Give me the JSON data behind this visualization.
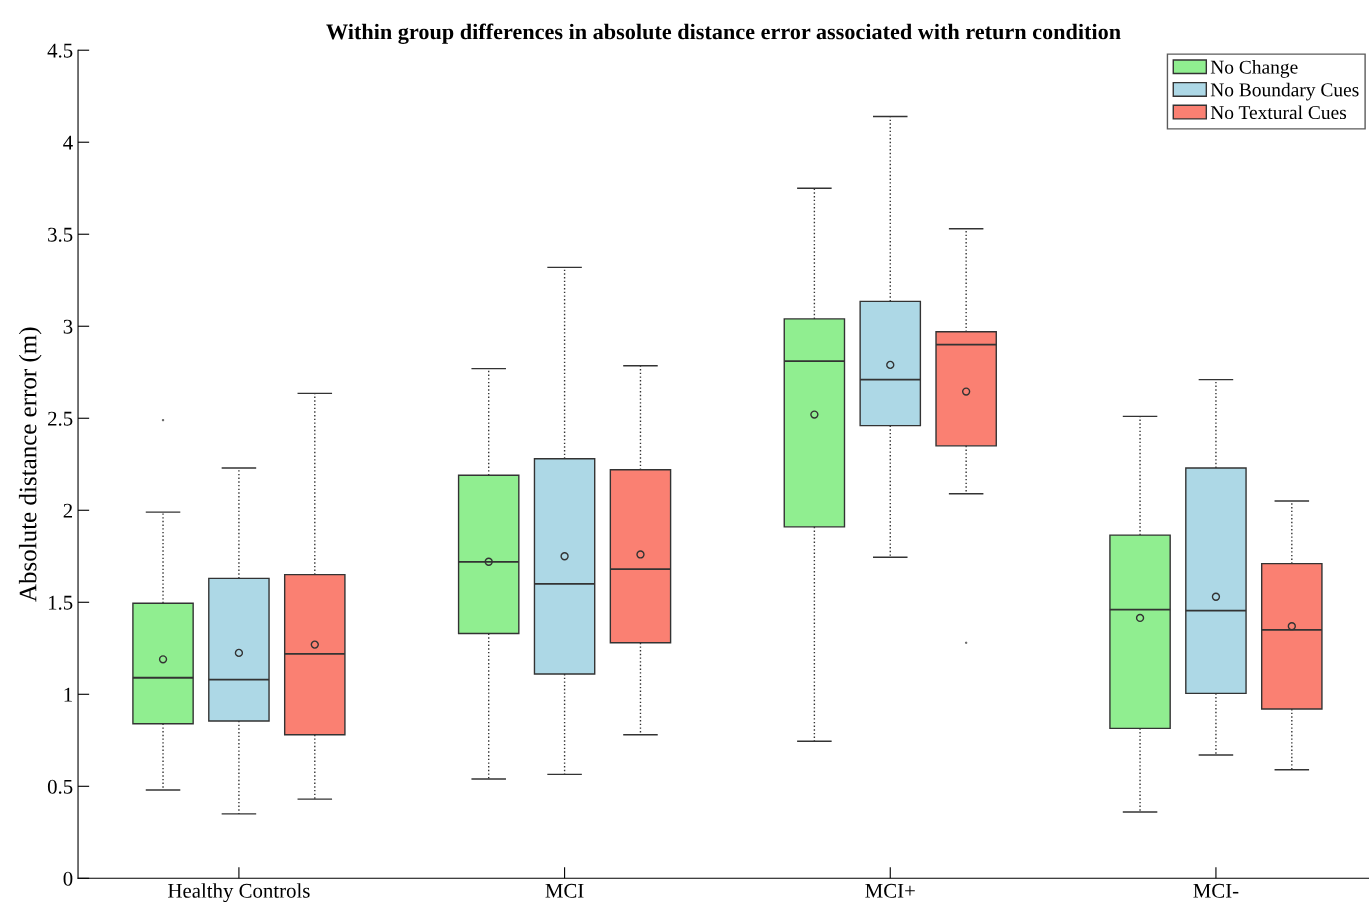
{
  "chart_data": {
    "type": "box",
    "title": "Within group differences in absolute distance error associated with return condition",
    "ylabel": "Absolute distance error (m)",
    "categories": [
      "Healthy Controls",
      "MCI",
      "MCI+",
      "MCI-"
    ],
    "ylim": [
      0,
      4.5
    ],
    "yticks": [
      0,
      0.5,
      1,
      1.5,
      2,
      2.5,
      3,
      3.5,
      4,
      4.5
    ],
    "grid": false,
    "legend": "top right",
    "series": [
      {
        "name": "No Change",
        "color": "#90ee90",
        "boxes": [
          {
            "low": 0.48,
            "q1": 0.84,
            "median": 1.09,
            "q3": 1.495,
            "high": 1.99,
            "mean": 1.19,
            "outliers": [
              2.49
            ]
          },
          {
            "low": 0.54,
            "q1": 1.33,
            "median": 1.72,
            "q3": 2.19,
            "high": 2.77,
            "mean": 1.72
          },
          {
            "low": 0.745,
            "q1": 1.91,
            "median": 2.81,
            "q3": 3.04,
            "high": 3.75,
            "mean": 2.52
          },
          {
            "low": 0.36,
            "q1": 0.815,
            "median": 1.46,
            "q3": 1.865,
            "high": 2.51,
            "mean": 1.415
          }
        ]
      },
      {
        "name": "No Boundary Cues",
        "color": "#add8e6",
        "boxes": [
          {
            "low": 0.35,
            "q1": 0.855,
            "median": 1.08,
            "q3": 1.63,
            "high": 2.23,
            "mean": 1.225
          },
          {
            "low": 0.565,
            "q1": 1.11,
            "median": 1.6,
            "q3": 2.28,
            "high": 3.32,
            "mean": 1.75
          },
          {
            "low": 1.745,
            "q1": 2.46,
            "median": 2.71,
            "q3": 3.135,
            "high": 4.14,
            "mean": 2.79
          },
          {
            "low": 0.67,
            "q1": 1.005,
            "median": 1.455,
            "q3": 2.23,
            "high": 2.71,
            "mean": 1.53
          }
        ]
      },
      {
        "name": "No Textural Cues",
        "color": "#fa8072",
        "boxes": [
          {
            "low": 0.43,
            "q1": 0.78,
            "median": 1.22,
            "q3": 1.65,
            "high": 2.635,
            "mean": 1.27
          },
          {
            "low": 0.78,
            "q1": 1.28,
            "median": 1.68,
            "q3": 2.22,
            "high": 2.785,
            "mean": 1.76
          },
          {
            "low": 2.09,
            "q1": 2.35,
            "median": 2.9,
            "q3": 2.97,
            "high": 3.53,
            "mean": 2.645,
            "outliers": [
              1.28
            ]
          },
          {
            "low": 0.59,
            "q1": 0.92,
            "median": 1.35,
            "q3": 1.71,
            "high": 2.05,
            "mean": 1.37
          }
        ]
      }
    ]
  }
}
